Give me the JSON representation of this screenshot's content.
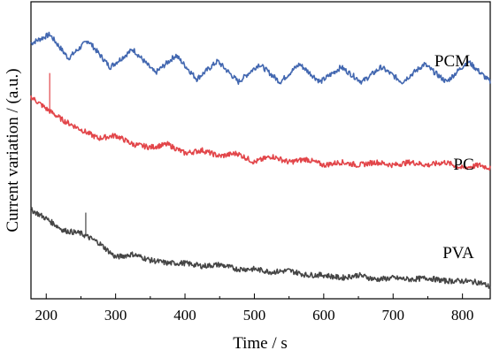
{
  "chart_data": {
    "type": "line",
    "title": "",
    "xlabel": "Time / s",
    "ylabel": "Current variation / (a.u.)",
    "xlim": [
      178,
      840
    ],
    "ylim": [
      0,
      10
    ],
    "x_ticks": [
      200,
      300,
      400,
      500,
      600,
      700,
      800
    ],
    "y_ticks_labeled": false,
    "grid": false,
    "legend": "inline labels at right",
    "series": [
      {
        "name": "PCM",
        "color": "#4267B0",
        "x": [
          178,
          205,
          232,
          260,
          292,
          325,
          357,
          387,
          417,
          447,
          477,
          507,
          537,
          565,
          595,
          625,
          655,
          683,
          713,
          745,
          777,
          808,
          840
        ],
        "y": [
          8.6,
          8.9,
          8.1,
          8.7,
          7.8,
          8.4,
          7.6,
          8.2,
          7.4,
          8.0,
          7.3,
          7.9,
          7.3,
          7.9,
          7.3,
          7.8,
          7.3,
          7.8,
          7.3,
          7.9,
          7.3,
          8.0,
          7.3
        ]
      },
      {
        "name": "PC",
        "color": "#E24549",
        "x": [
          178,
          200,
          225,
          250,
          275,
          300,
          325,
          350,
          375,
          400,
          425,
          450,
          475,
          500,
          525,
          550,
          575,
          600,
          625,
          650,
          675,
          700,
          725,
          750,
          775,
          800,
          825,
          840
        ],
        "y": [
          6.8,
          6.4,
          6.0,
          5.7,
          5.4,
          5.5,
          5.2,
          5.1,
          5.2,
          4.9,
          5.0,
          4.8,
          4.9,
          4.6,
          4.8,
          4.6,
          4.7,
          4.5,
          4.6,
          4.5,
          4.6,
          4.5,
          4.6,
          4.5,
          4.6,
          4.4,
          4.5,
          4.4
        ],
        "spike": {
          "x": 205,
          "y": 7.6
        }
      },
      {
        "name": "PVA",
        "color": "#454545",
        "x": [
          178,
          200,
          225,
          250,
          275,
          300,
          325,
          350,
          375,
          400,
          425,
          450,
          475,
          500,
          525,
          550,
          575,
          600,
          625,
          650,
          675,
          700,
          725,
          750,
          775,
          800,
          825,
          840
        ],
        "y": [
          3.0,
          2.7,
          2.3,
          2.2,
          1.9,
          1.4,
          1.5,
          1.3,
          1.2,
          1.2,
          1.1,
          1.15,
          1.0,
          1.0,
          0.9,
          0.95,
          0.8,
          0.8,
          0.7,
          0.8,
          0.65,
          0.7,
          0.65,
          0.7,
          0.6,
          0.6,
          0.55,
          0.4
        ],
        "spike": {
          "x": 257,
          "y": 2.9
        }
      }
    ]
  }
}
